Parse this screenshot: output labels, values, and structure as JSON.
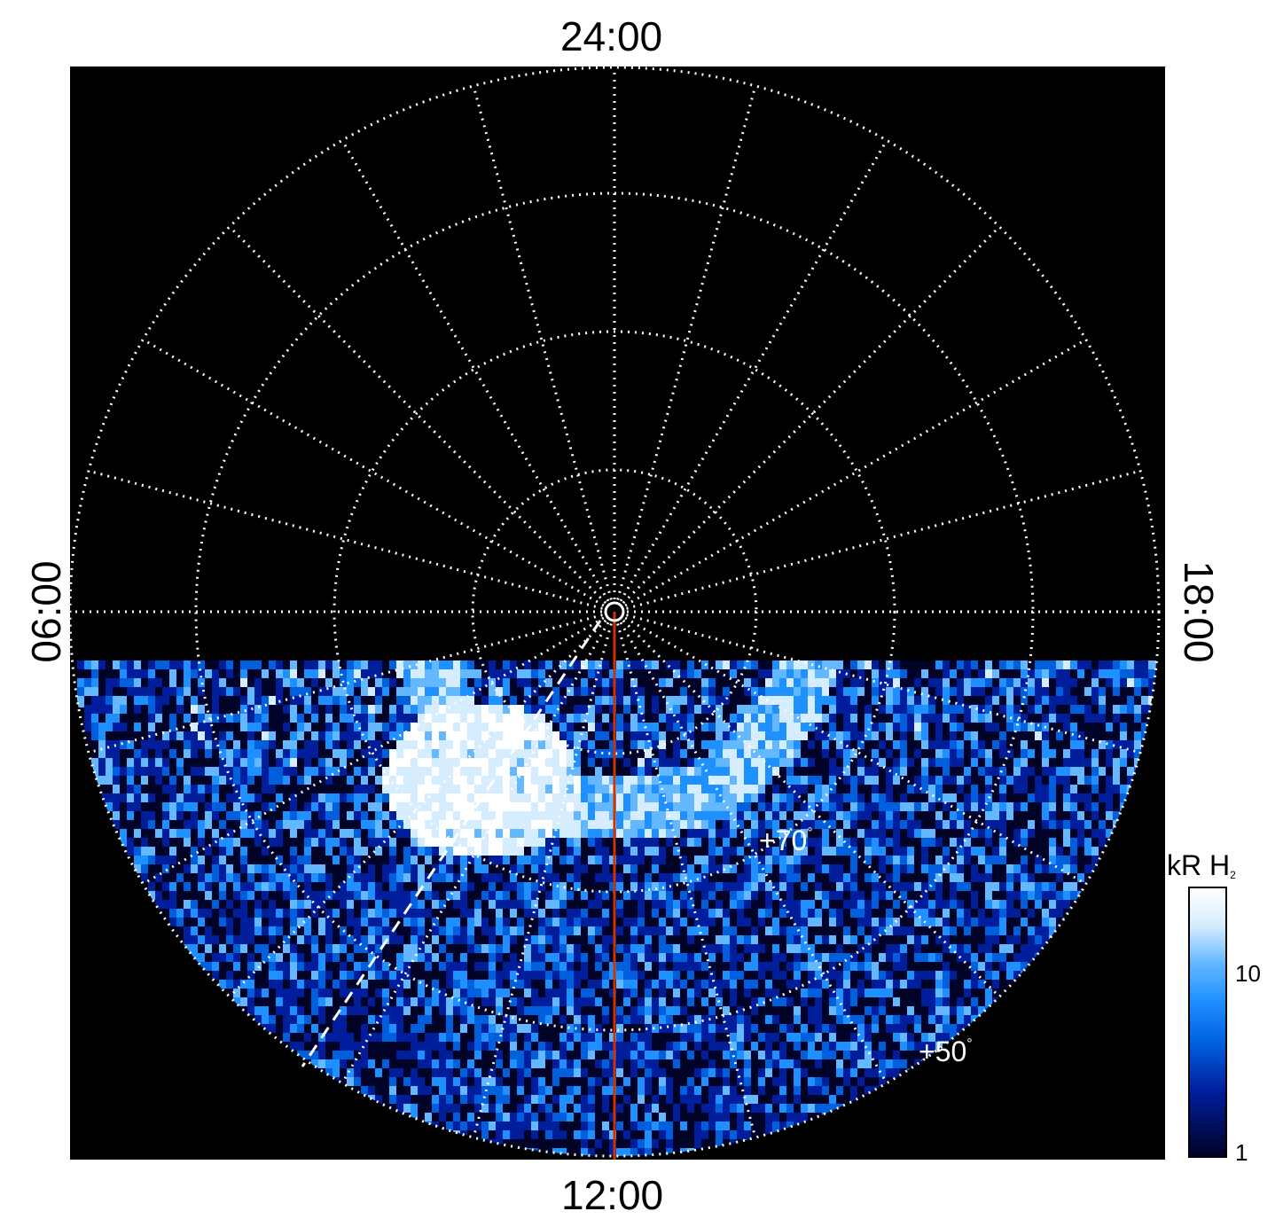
{
  "local_time_labels": {
    "top": "24:00",
    "bottom": "12:00",
    "left": "06:00",
    "right": "18:00"
  },
  "latitude_labels": {
    "lat_70": "+70",
    "lat_50": "+50",
    "degree_symbol": "°"
  },
  "colorbar": {
    "title": "kR H",
    "title_subscript": "2",
    "tick_10": "10",
    "tick_1": "1",
    "scale": "log",
    "colors": [
      "#000326",
      "#001e9b",
      "#005fdd",
      "#1e90ff",
      "#63b8ff",
      "#d6ecff",
      "#ffffff"
    ]
  },
  "overlay_colors": {
    "grid": "#ffffff",
    "noon_meridian": "#cc3300",
    "dashed_line": "#ffffff",
    "background": "#000000"
  }
}
